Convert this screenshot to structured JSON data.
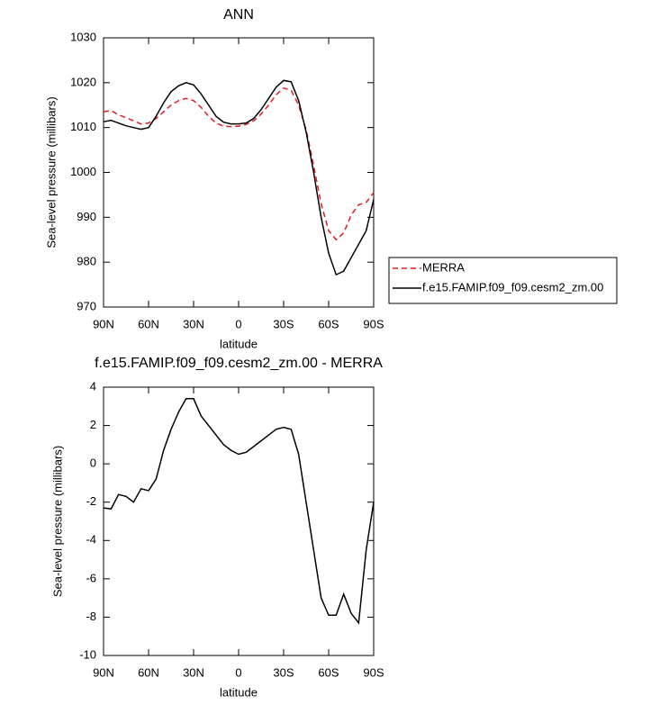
{
  "chart_data": [
    {
      "type": "line",
      "title": "ANN",
      "x_label": "latitude",
      "y_label": "Sea-level pressure (millibars)",
      "x": [
        90,
        85,
        80,
        75,
        70,
        65,
        60,
        55,
        50,
        45,
        40,
        35,
        30,
        25,
        20,
        15,
        10,
        5,
        0,
        -5,
        -10,
        -15,
        -20,
        -25,
        -30,
        -35,
        -40,
        -45,
        -50,
        -55,
        -60,
        -65,
        -70,
        -75,
        -80,
        -85,
        -90
      ],
      "xlim": [
        90,
        -90
      ],
      "xticks": [
        {
          "value": 90,
          "label": "90N"
        },
        {
          "value": 60,
          "label": "60N"
        },
        {
          "value": 30,
          "label": "30N"
        },
        0,
        {
          "value": -30,
          "label": "30S"
        },
        {
          "value": -60,
          "label": "60S"
        },
        {
          "value": -90,
          "label": "90S"
        }
      ],
      "ylim": [
        970,
        1030
      ],
      "yticks": [
        970,
        980,
        990,
        1000,
        1010,
        1020,
        1030
      ],
      "legend": "right",
      "series": [
        {
          "name": "MERRA",
          "color": "#e41a1c",
          "style": "dashed",
          "values": [
            1013.5,
            1013.8,
            1012.8,
            1012.2,
            1011.5,
            1010.8,
            1011.0,
            1012.0,
            1013.5,
            1015.0,
            1016.0,
            1016.5,
            1016.0,
            1014.5,
            1012.5,
            1011.0,
            1010.3,
            1010.2,
            1010.3,
            1010.7,
            1011.5,
            1013.0,
            1015.0,
            1017.3,
            1018.8,
            1018.3,
            1015.0,
            1009.5,
            1001.5,
            993.0,
            987.0,
            985.0,
            986.5,
            990.5,
            992.8,
            993.3,
            995.5
          ]
        },
        {
          "name": "f.e15.FAMIP.f09_f09.cesm2_zm.00",
          "color": "#000000",
          "style": "solid",
          "values": [
            1011.3,
            1011.6,
            1011.0,
            1010.4,
            1010.0,
            1009.6,
            1010.0,
            1012.5,
            1015.5,
            1018.0,
            1019.3,
            1020.0,
            1019.5,
            1017.5,
            1015.0,
            1012.5,
            1011.2,
            1010.8,
            1010.8,
            1011.0,
            1012.0,
            1014.0,
            1016.5,
            1019.0,
            1020.5,
            1020.2,
            1016.0,
            1009.0,
            1000.0,
            990.0,
            982.0,
            977.2,
            978.0,
            981.0,
            984.0,
            987.0,
            994.0
          ]
        }
      ]
    },
    {
      "type": "line",
      "title": "f.e15.FAMIP.f09_f09.cesm2_zm.00 - MERRA",
      "x_label": "latitude",
      "y_label": "Sea-level pressure (millibars)",
      "x": [
        90,
        85,
        80,
        75,
        70,
        65,
        60,
        55,
        50,
        45,
        40,
        35,
        30,
        25,
        20,
        15,
        10,
        5,
        0,
        -5,
        -10,
        -15,
        -20,
        -25,
        -30,
        -35,
        -40,
        -45,
        -50,
        -55,
        -60,
        -65,
        -70,
        -75,
        -80,
        -85,
        -90
      ],
      "xlim": [
        90,
        -90
      ],
      "xticks": [
        {
          "value": 90,
          "label": "90N"
        },
        {
          "value": 60,
          "label": "60N"
        },
        {
          "value": 30,
          "label": "30N"
        },
        0,
        {
          "value": -30,
          "label": "30S"
        },
        {
          "value": -60,
          "label": "60S"
        },
        {
          "value": -90,
          "label": "90S"
        }
      ],
      "ylim": [
        -10,
        4
      ],
      "yticks": [
        -10,
        -8,
        -6,
        -4,
        -2,
        0,
        2,
        4
      ],
      "color": "#000000",
      "values": [
        -2.3,
        -2.35,
        -1.6,
        -1.7,
        -2.0,
        -1.3,
        -1.4,
        -0.8,
        0.7,
        1.8,
        2.7,
        3.4,
        3.4,
        2.5,
        2.0,
        1.5,
        1.0,
        0.7,
        0.5,
        0.6,
        0.9,
        1.2,
        1.5,
        1.8,
        1.9,
        1.8,
        0.5,
        -2.0,
        -4.5,
        -7.0,
        -7.9,
        -7.9,
        -6.8,
        -7.8,
        -8.3,
        -4.5,
        -2.0
      ]
    }
  ]
}
